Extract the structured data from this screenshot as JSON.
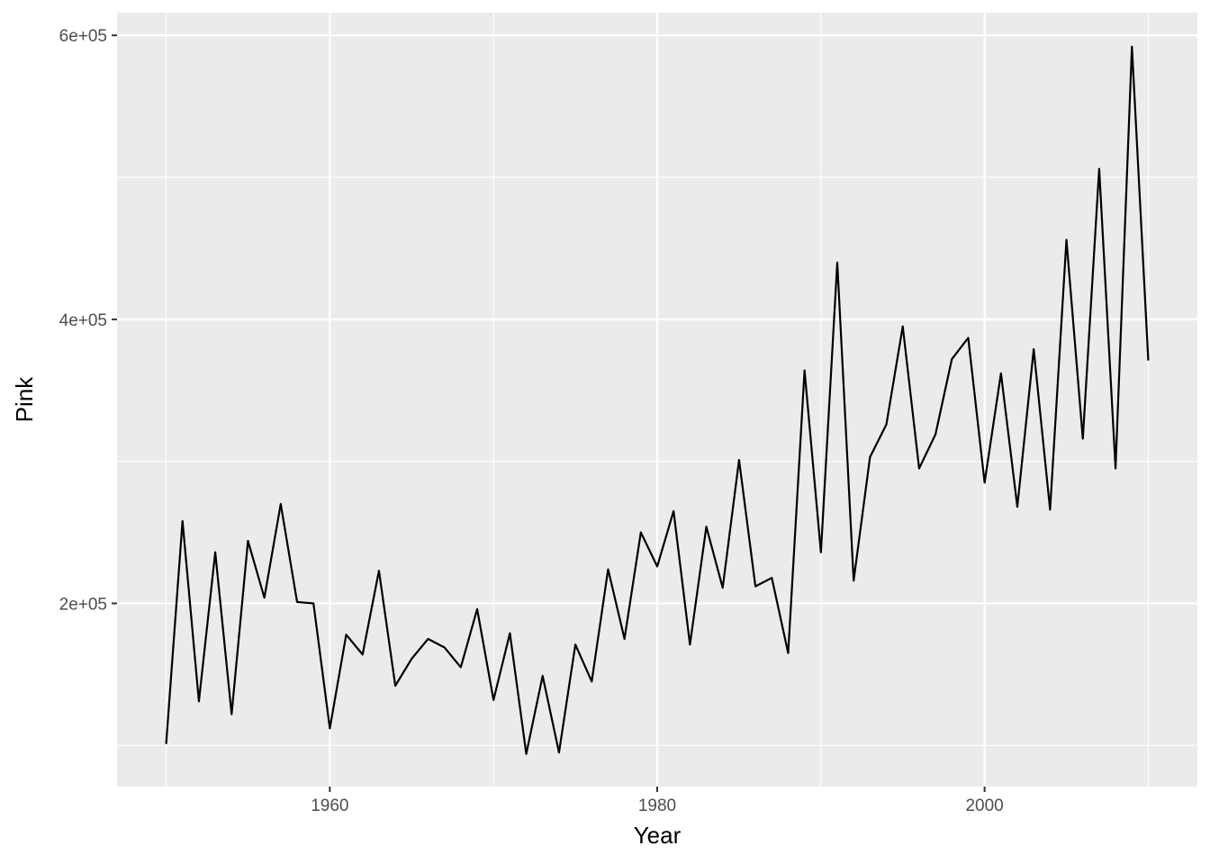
{
  "chart_data": {
    "type": "line",
    "title": "",
    "xlabel": "Year",
    "ylabel": "Pink",
    "xlim": [
      1947,
      2013
    ],
    "ylim": [
      71000,
      616000
    ],
    "x_major_ticks": [
      1960,
      1980,
      2000
    ],
    "x_tick_labels": [
      "1960",
      "1980",
      "2000"
    ],
    "x_minor_ticks": [
      1950,
      1970,
      1990,
      2010
    ],
    "y_major_ticks": [
      200000,
      400000,
      600000
    ],
    "y_tick_labels": [
      "2e+05",
      "4e+05",
      "6e+05"
    ],
    "y_minor_ticks": [
      100000,
      300000,
      500000
    ],
    "grid": true,
    "colors": {
      "panel_background": "#ebebeb",
      "grid": "#ffffff",
      "line": "#000000"
    },
    "series": [
      {
        "x": [
          1950,
          1951,
          1952,
          1953,
          1954,
          1955,
          1956,
          1957,
          1958,
          1959,
          1960,
          1961,
          1962,
          1963,
          1964,
          1965,
          1966,
          1967,
          1968,
          1969,
          1970,
          1971,
          1972,
          1973,
          1974,
          1975,
          1976,
          1977,
          1978,
          1979,
          1980,
          1981,
          1982,
          1983,
          1984,
          1985,
          1986,
          1987,
          1988,
          1989,
          1990,
          1991,
          1992,
          1993,
          1994,
          1995,
          1996,
          1997,
          1998,
          1999,
          2000,
          2001,
          2002,
          2003,
          2004,
          2005,
          2006,
          2007,
          2008,
          2009,
          2010
        ],
        "values": [
          101000,
          258000,
          131000,
          236000,
          122000,
          244000,
          204000,
          270000,
          201000,
          200000,
          112000,
          178000,
          164000,
          223000,
          142000,
          161000,
          175000,
          169000,
          155000,
          196000,
          132000,
          179000,
          94000,
          149000,
          95000,
          171000,
          145000,
          224000,
          175000,
          250000,
          226000,
          265000,
          171000,
          254000,
          211000,
          301000,
          212000,
          218000,
          165000,
          364000,
          236000,
          440000,
          216000,
          303000,
          326000,
          395000,
          295000,
          319000,
          372000,
          387000,
          285000,
          362000,
          268000,
          379000,
          266000,
          456000,
          316000,
          506000,
          295000,
          592000,
          371000
        ]
      }
    ]
  }
}
